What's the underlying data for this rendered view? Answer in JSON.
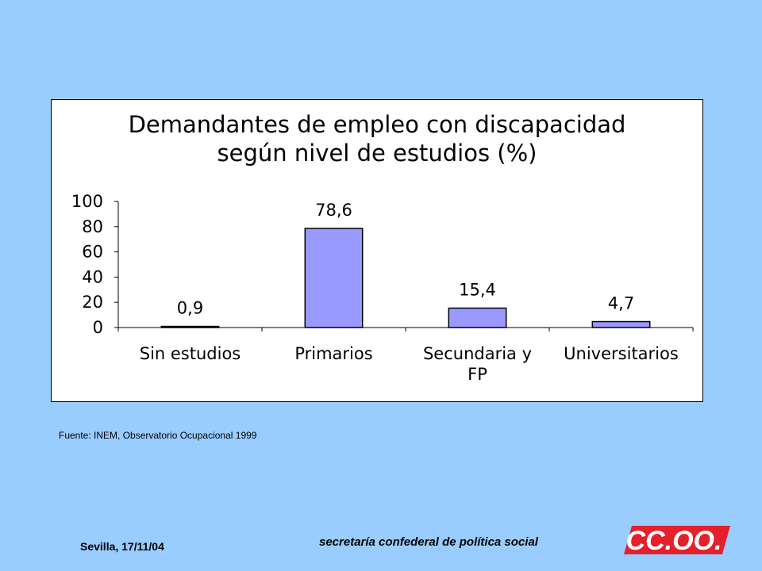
{
  "chart_data": {
    "type": "bar",
    "title": [
      "Demandantes de empleo con discapacidad",
      "según nivel de estudios (%)"
    ],
    "categories": [
      [
        "Sin estudios"
      ],
      [
        "Primarios"
      ],
      [
        "Secundaria y",
        "FP"
      ],
      [
        "Universitarios"
      ]
    ],
    "values": [
      0.9,
      78.6,
      15.4,
      4.7
    ],
    "data_labels": [
      "0,9",
      "78,6",
      "15,4",
      "4,7"
    ],
    "ylim": [
      0,
      100
    ],
    "yticks": [
      0,
      20,
      40,
      60,
      80,
      100
    ],
    "grid": false,
    "legend": "none",
    "bar_color": "#9999ff",
    "bar_edge_color": "#000000"
  },
  "source_note": "Fuente: INEM, Observatorio Ocupacional 1999",
  "footer": {
    "date": "Sevilla, 17/11/04",
    "department": "secretaría confederal de política social",
    "logo_text": "CC.OO."
  },
  "colors": {
    "background": "#99ccff",
    "logo_red": "#e4202a"
  }
}
